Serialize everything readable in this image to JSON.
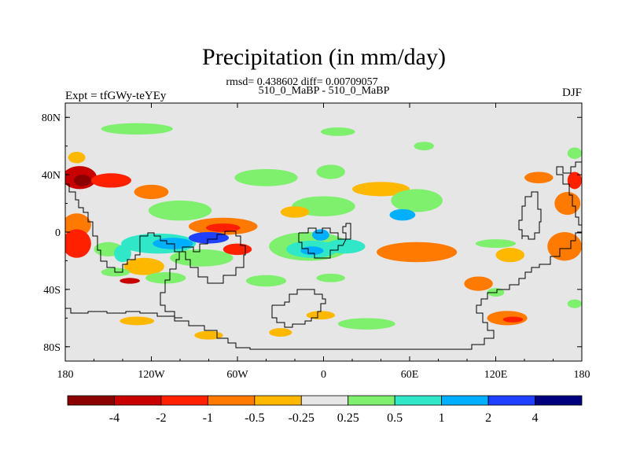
{
  "chart_data": {
    "type": "heatmap",
    "title": "Precipitation (in mm/day)",
    "subtitle_stats": "rmsd= 0.438602 diff= 0.00709057",
    "subtitle_runs": "510_0_MaBP - 510_0_MaBP",
    "left_label": "Expt = tfGWy-teYEy",
    "right_label": "DJF",
    "x_ticks": [
      "180",
      "120W",
      "60W",
      "0",
      "60E",
      "120E",
      "180"
    ],
    "y_ticks": [
      "80N",
      "40N",
      "0",
      "40S",
      "80S"
    ],
    "xlim": [
      -180,
      180
    ],
    "ylim": [
      -90,
      90
    ],
    "background_color": "#e6e6e6",
    "colorbar": {
      "colors": [
        "#8b0000",
        "#c80000",
        "#ff2000",
        "#ff7a00",
        "#ffb800",
        "#e6e6e6",
        "#7ef06e",
        "#30e8c8",
        "#00b0ff",
        "#2040ff",
        "#00007f"
      ],
      "labels": [
        "-4",
        "-2",
        "-1",
        "-0.5",
        "-0.25",
        "0.25",
        "0.5",
        "1",
        "2",
        "4"
      ]
    },
    "anomaly_regions": [
      {
        "lon": -170,
        "lat": 38,
        "rx": 12,
        "ry": 8,
        "level": 1
      },
      {
        "lon": -168,
        "lat": 36,
        "rx": 6,
        "ry": 4,
        "level": 0
      },
      {
        "lon": -148,
        "lat": 36,
        "rx": 14,
        "ry": 5,
        "level": 2
      },
      {
        "lon": -120,
        "lat": 28,
        "rx": 12,
        "ry": 5,
        "level": 3
      },
      {
        "lon": -172,
        "lat": 52,
        "rx": 6,
        "ry": 4,
        "level": 4
      },
      {
        "lon": -40,
        "lat": 38,
        "rx": 22,
        "ry": 6,
        "level": 6
      },
      {
        "lon": 5,
        "lat": 42,
        "rx": 10,
        "ry": 5,
        "level": 6
      },
      {
        "lon": 70,
        "lat": 60,
        "rx": 7,
        "ry": 3,
        "level": 6
      },
      {
        "lon": -130,
        "lat": 72,
        "rx": 25,
        "ry": 4,
        "level": 6
      },
      {
        "lon": 10,
        "lat": 70,
        "rx": 12,
        "ry": 3,
        "level": 6
      },
      {
        "lon": 40,
        "lat": 30,
        "rx": 20,
        "ry": 5,
        "level": 4
      },
      {
        "lon": 65,
        "lat": 22,
        "rx": 18,
        "ry": 8,
        "level": 6
      },
      {
        "lon": 55,
        "lat": 12,
        "rx": 9,
        "ry": 4,
        "level": 8
      },
      {
        "lon": 0,
        "lat": 18,
        "rx": 22,
        "ry": 7,
        "level": 6
      },
      {
        "lon": -20,
        "lat": 14,
        "rx": 10,
        "ry": 4,
        "level": 4
      },
      {
        "lon": -100,
        "lat": 15,
        "rx": 22,
        "ry": 7,
        "level": 6
      },
      {
        "lon": -70,
        "lat": 4,
        "rx": 24,
        "ry": 6,
        "level": 3
      },
      {
        "lon": -70,
        "lat": 3,
        "rx": 12,
        "ry": 3,
        "level": 2
      },
      {
        "lon": -115,
        "lat": -8,
        "rx": 26,
        "ry": 7,
        "level": 7
      },
      {
        "lon": -105,
        "lat": -8,
        "rx": 14,
        "ry": 4,
        "level": 8
      },
      {
        "lon": -80,
        "lat": -4,
        "rx": 14,
        "ry": 4,
        "level": 9
      },
      {
        "lon": -150,
        "lat": -12,
        "rx": 10,
        "ry": 5,
        "level": 6
      },
      {
        "lon": -140,
        "lat": -15,
        "rx": 6,
        "ry": 6,
        "level": 7
      },
      {
        "lon": -85,
        "lat": -18,
        "rx": 22,
        "ry": 6,
        "level": 6
      },
      {
        "lon": -125,
        "lat": -24,
        "rx": 14,
        "ry": 6,
        "level": 4
      },
      {
        "lon": -60,
        "lat": -12,
        "rx": 10,
        "ry": 4,
        "level": 2
      },
      {
        "lon": -10,
        "lat": -10,
        "rx": 28,
        "ry": 10,
        "level": 6
      },
      {
        "lon": -8,
        "lat": -12,
        "rx": 18,
        "ry": 6,
        "level": 7
      },
      {
        "lon": -8,
        "lat": -13,
        "rx": 8,
        "ry": 3,
        "level": 8
      },
      {
        "lon": 15,
        "lat": -10,
        "rx": 14,
        "ry": 5,
        "level": 7
      },
      {
        "lon": -2,
        "lat": -2,
        "rx": 6,
        "ry": 4,
        "level": 8
      },
      {
        "lon": 65,
        "lat": -14,
        "rx": 28,
        "ry": 7,
        "level": 3
      },
      {
        "lon": 130,
        "lat": -16,
        "rx": 10,
        "ry": 5,
        "level": 4
      },
      {
        "lon": 120,
        "lat": -8,
        "rx": 14,
        "ry": 3,
        "level": 6
      },
      {
        "lon": 170,
        "lat": 20,
        "rx": 9,
        "ry": 8,
        "level": 3
      },
      {
        "lon": 168,
        "lat": -10,
        "rx": 12,
        "ry": 10,
        "level": 3
      },
      {
        "lon": 175,
        "lat": 36,
        "rx": 5,
        "ry": 6,
        "level": 2
      },
      {
        "lon": 150,
        "lat": 38,
        "rx": 10,
        "ry": 4,
        "level": 3
      },
      {
        "lon": 175,
        "lat": 55,
        "rx": 5,
        "ry": 4,
        "level": 6
      },
      {
        "lon": -172,
        "lat": 5,
        "rx": 10,
        "ry": 8,
        "level": 3
      },
      {
        "lon": -172,
        "lat": -8,
        "rx": 10,
        "ry": 10,
        "level": 2
      },
      {
        "lon": -135,
        "lat": -34,
        "rx": 7,
        "ry": 2,
        "level": 1
      },
      {
        "lon": -145,
        "lat": -28,
        "rx": 10,
        "ry": 3,
        "level": 6
      },
      {
        "lon": -110,
        "lat": -32,
        "rx": 14,
        "ry": 4,
        "level": 6
      },
      {
        "lon": -40,
        "lat": -34,
        "rx": 14,
        "ry": 4,
        "level": 6
      },
      {
        "lon": 5,
        "lat": -32,
        "rx": 10,
        "ry": 3,
        "level": 6
      },
      {
        "lon": 108,
        "lat": -36,
        "rx": 10,
        "ry": 5,
        "level": 3
      },
      {
        "lon": 120,
        "lat": -42,
        "rx": 6,
        "ry": 3,
        "level": 6
      },
      {
        "lon": 128,
        "lat": -60,
        "rx": 14,
        "ry": 5,
        "level": 3
      },
      {
        "lon": 132,
        "lat": -61,
        "rx": 7,
        "ry": 2,
        "level": 2
      },
      {
        "lon": -30,
        "lat": -70,
        "rx": 8,
        "ry": 3,
        "level": 4
      },
      {
        "lon": -80,
        "lat": -72,
        "rx": 10,
        "ry": 3,
        "level": 4
      },
      {
        "lon": 30,
        "lat": -64,
        "rx": 20,
        "ry": 4,
        "level": 6
      },
      {
        "lon": -130,
        "lat": -62,
        "rx": 12,
        "ry": 3,
        "level": 4
      },
      {
        "lon": -2,
        "lat": -58,
        "rx": 10,
        "ry": 3,
        "level": 4
      },
      {
        "lon": 175,
        "lat": -50,
        "rx": 5,
        "ry": 3,
        "level": 6
      }
    ]
  }
}
